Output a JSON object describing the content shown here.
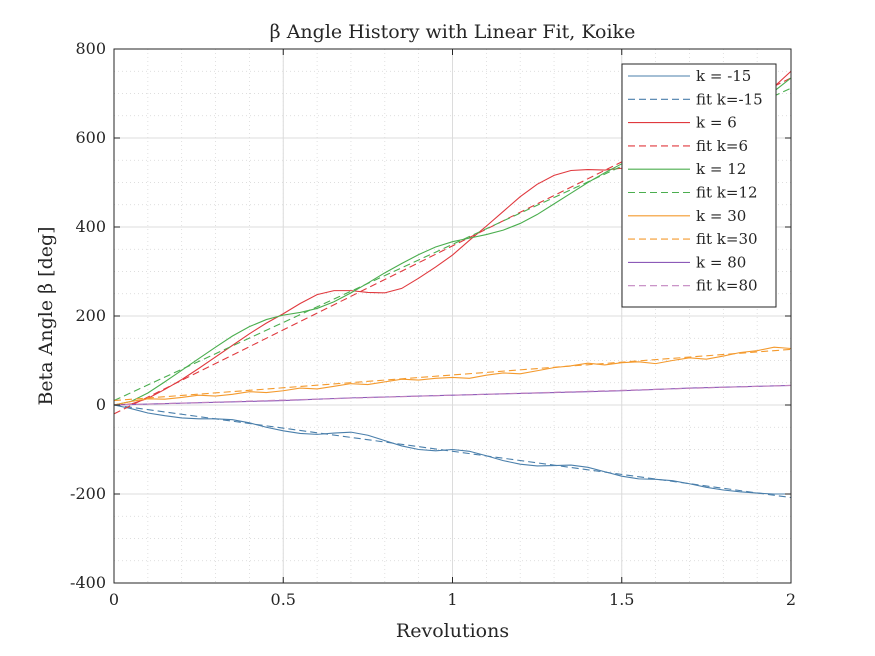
{
  "chart_data": {
    "type": "line",
    "title": "β Angle History with Linear Fit, Koike",
    "xlabel": "Revolutions",
    "ylabel": "Beta Angle β [deg]",
    "xlim": [
      0,
      2
    ],
    "ylim": [
      -400,
      800
    ],
    "xticks": [
      0,
      0.5,
      1,
      1.5,
      2
    ],
    "xtick_labels": [
      "0",
      "0.5",
      "1",
      "1.5",
      "2"
    ],
    "yticks": [
      -400,
      -200,
      0,
      200,
      400,
      600,
      800
    ],
    "ytick_labels": [
      "-400",
      "-200",
      "0",
      "200",
      "400",
      "600",
      "800"
    ],
    "grid": true,
    "minor_grid": true,
    "legend_position": "top-right",
    "series": [
      {
        "name": "k = -15",
        "color": "#4a7fab",
        "style": "solid",
        "x": [
          0,
          0.05,
          0.1,
          0.15,
          0.2,
          0.25,
          0.3,
          0.35,
          0.4,
          0.45,
          0.5,
          0.55,
          0.6,
          0.65,
          0.7,
          0.75,
          0.8,
          0.85,
          0.9,
          0.95,
          1.0,
          1.05,
          1.1,
          1.15,
          1.2,
          1.25,
          1.3,
          1.35,
          1.4,
          1.45,
          1.5,
          1.55,
          1.6,
          1.65,
          1.7,
          1.75,
          1.8,
          1.85,
          1.9,
          1.95,
          2.0
        ],
        "y": [
          0,
          -8,
          -18,
          -24,
          -29,
          -31,
          -31,
          -33,
          -40,
          -50,
          -58,
          -64,
          -66,
          -63,
          -61,
          -68,
          -80,
          -92,
          -100,
          -103,
          -100,
          -104,
          -114,
          -125,
          -133,
          -137,
          -136,
          -135,
          -140,
          -150,
          -160,
          -166,
          -167,
          -170,
          -177,
          -185,
          -191,
          -195,
          -198,
          -200,
          -200
        ]
      },
      {
        "name": "fit k=-15",
        "color": "#4a7fab",
        "style": "dashed",
        "x": [
          0,
          2
        ],
        "y": [
          0,
          -208
        ]
      },
      {
        "name": "k = 6",
        "color": "#e0393e",
        "style": "solid",
        "x": [
          0,
          0.05,
          0.1,
          0.15,
          0.2,
          0.25,
          0.3,
          0.35,
          0.4,
          0.45,
          0.5,
          0.55,
          0.6,
          0.65,
          0.7,
          0.75,
          0.8,
          0.85,
          0.9,
          0.95,
          1.0,
          1.05,
          1.1,
          1.15,
          1.2,
          1.25,
          1.3,
          1.35,
          1.4,
          1.45,
          1.5,
          1.55,
          1.6,
          1.65,
          1.7,
          1.75,
          1.8,
          1.85,
          1.9,
          1.95,
          2.0
        ],
        "y": [
          0,
          2,
          15,
          35,
          57,
          82,
          108,
          134,
          160,
          184,
          205,
          228,
          248,
          257,
          257,
          253,
          252,
          262,
          285,
          310,
          337,
          370,
          402,
          435,
          468,
          496,
          516,
          527,
          529,
          528,
          532,
          548,
          570,
          590,
          610,
          630,
          650,
          670,
          690,
          715,
          750
        ]
      },
      {
        "name": "fit k=6",
        "color": "#e0393e",
        "style": "dashed",
        "x": [
          0,
          2
        ],
        "y": [
          -20,
          735
        ]
      },
      {
        "name": "k = 12",
        "color": "#4bae4f",
        "style": "solid",
        "x": [
          0,
          0.05,
          0.1,
          0.15,
          0.2,
          0.25,
          0.3,
          0.35,
          0.4,
          0.45,
          0.5,
          0.55,
          0.6,
          0.65,
          0.7,
          0.75,
          0.8,
          0.85,
          0.9,
          0.95,
          1.0,
          1.05,
          1.1,
          1.15,
          1.2,
          1.25,
          1.3,
          1.35,
          1.4,
          1.45,
          1.5,
          1.55,
          1.6,
          1.65,
          1.7,
          1.75,
          1.8,
          1.85,
          1.9,
          1.95,
          2.0
        ],
        "y": [
          0,
          8,
          27,
          52,
          78,
          104,
          130,
          155,
          176,
          192,
          202,
          208,
          217,
          232,
          252,
          274,
          297,
          318,
          338,
          355,
          367,
          375,
          383,
          393,
          408,
          428,
          452,
          476,
          500,
          522,
          542,
          560,
          578,
          597,
          616,
          635,
          655,
          672,
          688,
          705,
          735
        ]
      },
      {
        "name": "fit k=12",
        "color": "#4bae4f",
        "style": "dashed",
        "x": [
          0,
          2
        ],
        "y": [
          10,
          712
        ]
      },
      {
        "name": "k = 30",
        "color": "#f49a2e",
        "style": "solid",
        "x": [
          0,
          0.05,
          0.1,
          0.15,
          0.2,
          0.25,
          0.3,
          0.35,
          0.4,
          0.45,
          0.5,
          0.55,
          0.6,
          0.65,
          0.7,
          0.75,
          0.8,
          0.85,
          0.9,
          0.95,
          1.0,
          1.05,
          1.1,
          1.15,
          1.2,
          1.25,
          1.3,
          1.35,
          1.4,
          1.45,
          1.5,
          1.55,
          1.6,
          1.65,
          1.7,
          1.75,
          1.8,
          1.85,
          1.9,
          1.95,
          2.0
        ],
        "y": [
          0,
          8,
          14,
          13,
          17,
          22,
          20,
          24,
          30,
          28,
          32,
          38,
          36,
          42,
          48,
          46,
          52,
          58,
          56,
          60,
          62,
          60,
          67,
          72,
          70,
          77,
          84,
          88,
          94,
          90,
          95,
          97,
          93,
          100,
          106,
          103,
          110,
          118,
          122,
          130,
          127
        ]
      },
      {
        "name": "fit k=30",
        "color": "#f49a2e",
        "style": "dashed",
        "x": [
          0,
          2
        ],
        "y": [
          10,
          125
        ]
      },
      {
        "name": "k = 80",
        "color": "#8c5ab8",
        "style": "solid",
        "x": [
          0,
          0.1,
          0.2,
          0.3,
          0.4,
          0.5,
          0.6,
          0.7,
          0.8,
          0.9,
          1.0,
          1.1,
          1.2,
          1.3,
          1.4,
          1.5,
          1.6,
          1.7,
          1.8,
          1.9,
          2.0
        ],
        "y": [
          0,
          2,
          4,
          6,
          8,
          10,
          13,
          16,
          18,
          20,
          22,
          24,
          26,
          28,
          30,
          32,
          35,
          38,
          40,
          42,
          44
        ]
      },
      {
        "name": "fit k=80",
        "color": "#c285c0",
        "style": "dashed",
        "x": [
          0,
          2
        ],
        "y": [
          0,
          44
        ]
      }
    ]
  }
}
